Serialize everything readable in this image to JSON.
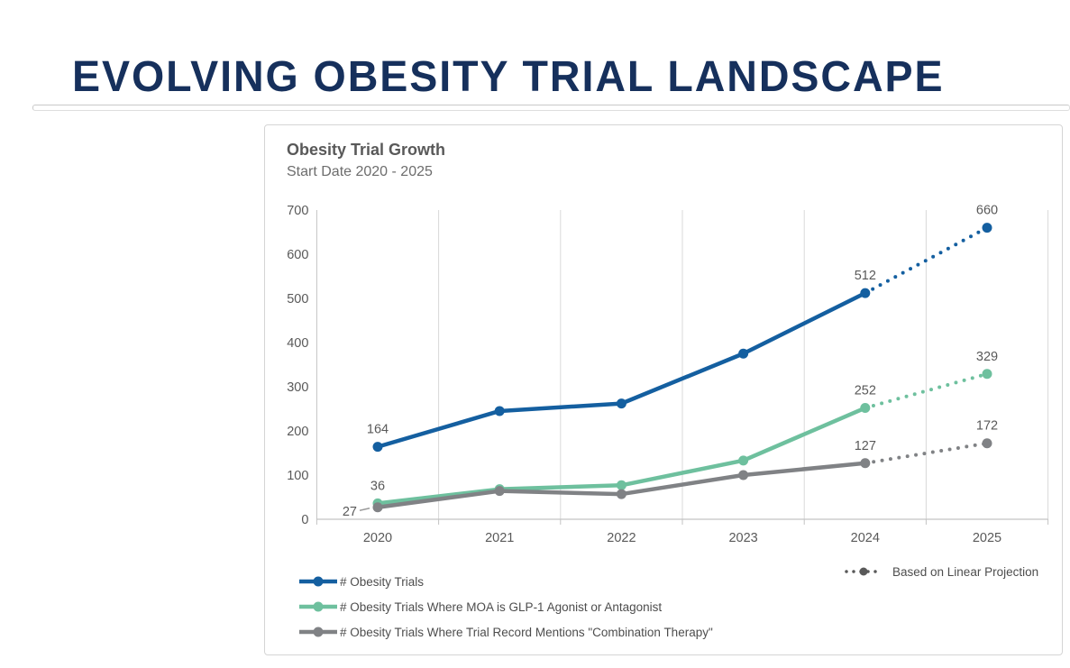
{
  "page": {
    "title": "EVOLVING OBESITY TRIAL LANDSCAPE"
  },
  "chart": {
    "title": "Obesity Trial Growth",
    "subtitle": "Start Date 2020 - 2025",
    "legend": [
      {
        "label": "# Obesity Trials",
        "color": "#145fa0"
      },
      {
        "label": "# Obesity Trials Where MOA is GLP-1 Agonist or Antagonist",
        "color": "#6ec09e"
      },
      {
        "label": "# Obesity Trials Where Trial Record Mentions \"Combination Therapy\"",
        "color": "#808285"
      }
    ],
    "projection_legend": {
      "label": "Based on Linear Projection",
      "color": "#595959"
    }
  },
  "chart_data": {
    "type": "line",
    "title": "Obesity Trial Growth",
    "subtitle": "Start Date 2020 - 2025",
    "categories": [
      "2020",
      "2021",
      "2022",
      "2023",
      "2024",
      "2025"
    ],
    "series": [
      {
        "name": "# Obesity Trials",
        "color": "#145fa0",
        "values": [
          164,
          245,
          262,
          375,
          512,
          660
        ],
        "labels": [
          {
            "i": 0,
            "text": "164",
            "placement": "above"
          },
          {
            "i": 4,
            "text": "512",
            "placement": "above"
          },
          {
            "i": 5,
            "text": "660",
            "placement": "above"
          }
        ]
      },
      {
        "name": "# Obesity Trials Where MOA is GLP-1 Agonist or Antagonist",
        "color": "#6ec09e",
        "values": [
          36,
          68,
          77,
          133,
          252,
          329
        ],
        "labels": [
          {
            "i": 0,
            "text": "36",
            "placement": "above"
          },
          {
            "i": 4,
            "text": "252",
            "placement": "above"
          },
          {
            "i": 5,
            "text": "329",
            "placement": "above"
          }
        ]
      },
      {
        "name": "# Obesity Trials Where Trial Record Mentions \"Combination Therapy\"",
        "color": "#808285",
        "values": [
          27,
          64,
          57,
          100,
          127,
          172
        ],
        "labels": [
          {
            "i": 0,
            "text": "27",
            "placement": "left-leader"
          },
          {
            "i": 4,
            "text": "127",
            "placement": "above"
          },
          {
            "i": 5,
            "text": "172",
            "placement": "above"
          }
        ]
      }
    ],
    "projection_start_index": 4,
    "projection_note": "Based on Linear Projection",
    "ylim": [
      0,
      700
    ],
    "yticks": [
      0,
      100,
      200,
      300,
      400,
      500,
      600,
      700
    ],
    "grid": "vertical-only",
    "legend_position": "bottom-left",
    "colors": {
      "gridline": "#d9d9d9",
      "axis": "#c3c3c3",
      "tick_text": "#595959",
      "data_label_text": "#595959"
    }
  }
}
